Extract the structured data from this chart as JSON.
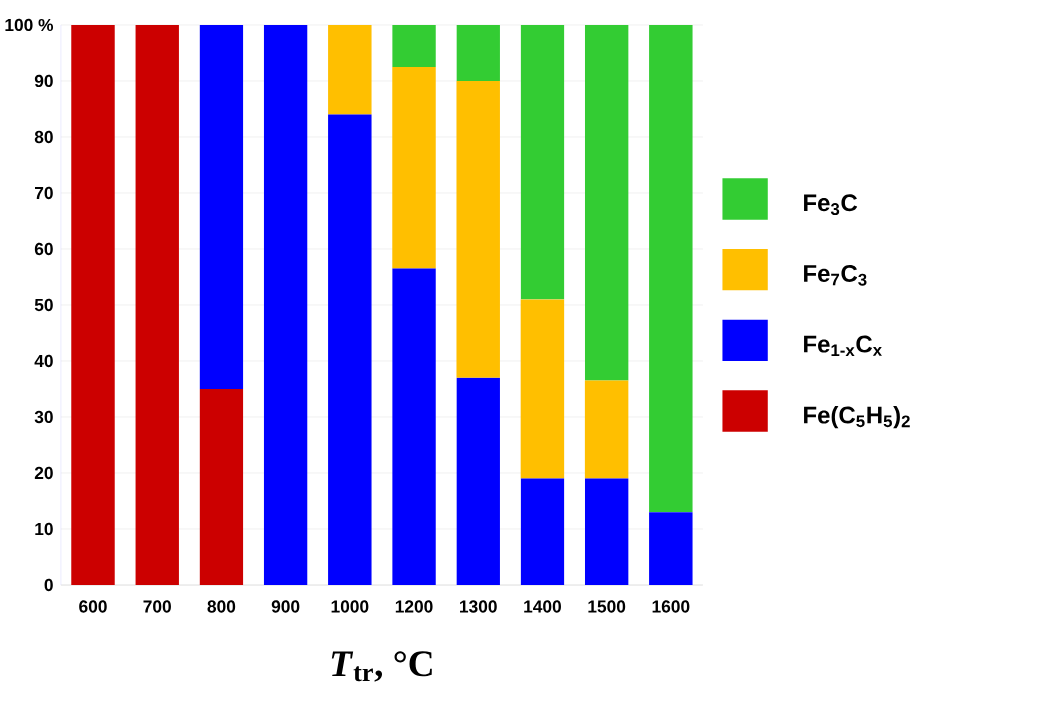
{
  "chart_data": {
    "type": "bar",
    "stacked": true,
    "xlabel": "*T*$_{tr}$, °C",
    "categories": [
      "600",
      "700",
      "800",
      "900",
      "1000",
      "1200",
      "1300",
      "1400",
      "1500",
      "1600"
    ],
    "series": [
      {
        "name": "Fe(C$_{5}$H$_{5}$)$_{2}$",
        "color": "#cc0000",
        "values": [
          100,
          100,
          35,
          null,
          null,
          null,
          null,
          null,
          null,
          null
        ]
      },
      {
        "name": "Fe$_{1-x}$C$_{x}$",
        "color": "#0000ff",
        "values": [
          null,
          null,
          65,
          100,
          84,
          56.5,
          37,
          19,
          19,
          13
        ]
      },
      {
        "name": "Fe$_{7}$C$_{3}$",
        "color": "#ffbf00",
        "values": [
          null,
          null,
          null,
          null,
          16,
          36,
          53,
          32,
          17.5,
          null
        ]
      },
      {
        "name": "Fe$_{3}$C",
        "color": "#33cc33",
        "values": [
          null,
          null,
          null,
          null,
          null,
          7.5,
          10,
          49,
          63.5,
          87
        ]
      }
    ],
    "ylim": [
      0,
      100
    ],
    "yticks": [
      0,
      10,
      20,
      30,
      40,
      50,
      60,
      70,
      80,
      90,
      {
        "value": 100,
        "label": "100 %"
      }
    ],
    "grid": "y",
    "legend": "right"
  }
}
